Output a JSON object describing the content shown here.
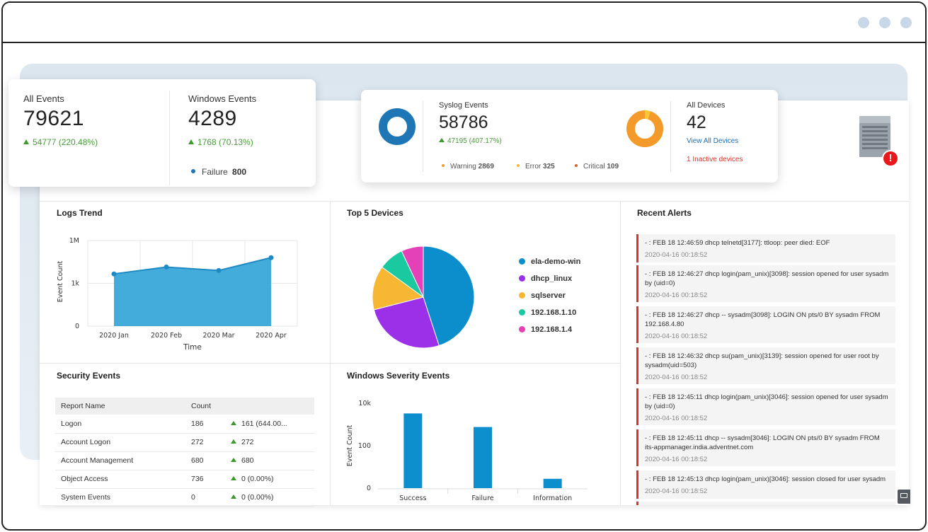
{
  "window": {
    "controls": [
      "dot-1",
      "dot-2",
      "dot-3"
    ]
  },
  "summary": {
    "all_events": {
      "label": "All Events",
      "value": "79621",
      "change": "54777 (220.48%)"
    },
    "windows_events": {
      "label": "Windows Events",
      "value": "4289",
      "change": "1768 (70.13%)",
      "failure_label": "Failure",
      "failure_value": "800"
    },
    "syslog_events": {
      "label": "Syslog Events",
      "value": "58786",
      "change": "47195 (407.17%)",
      "warning_label": "Warning",
      "warning_value": "2869",
      "error_label": "Error",
      "error_value": "325",
      "critical_label": "Critical",
      "critical_value": "109"
    },
    "all_devices": {
      "label": "All Devices",
      "value": "42",
      "view_link": "View All Devices",
      "inactive": "1 Inactive devices"
    }
  },
  "colors": {
    "blue": "#1e77b4",
    "orange": "#f39a2b",
    "red": "#d9342b",
    "green": "#3a9a2a",
    "area": "#3aa8d8",
    "bar": "#0d8fce"
  },
  "icons": {
    "server": "server-icon",
    "alert": "alert-icon"
  },
  "logs_trend": {
    "title": "Logs Trend",
    "chart_data": {
      "type": "area",
      "x": [
        "2020 Jan",
        "2020 Feb",
        "2020 Mar",
        "2020 Apr"
      ],
      "y_tick_labels": [
        "0",
        "1k",
        "1M"
      ],
      "values_relative_to_top_tick": [
        0.61,
        0.69,
        0.65,
        0.8
      ],
      "xlabel": "Time",
      "ylabel": "Event Count",
      "scale": "log"
    }
  },
  "top_devices": {
    "title": "Top 5 Devices",
    "chart_data": {
      "type": "pie",
      "labels": [
        "ela-demo-win",
        "dhcp_linux",
        "sqlserver",
        "192.168.1.10",
        "192.168.1.4"
      ],
      "values": [
        45,
        26,
        14,
        8,
        7
      ],
      "colors": [
        "#0b8ecb",
        "#9b30e8",
        "#f7b733",
        "#1bc9a1",
        "#e440b8"
      ]
    }
  },
  "recent_alerts": {
    "title": "Recent Alerts",
    "items": [
      {
        "msg": "- : FEB 18 12:46:59 dhcp telnetd[3177]: ttloop: peer died: EOF",
        "ts": "2020-04-16 00:18:52"
      },
      {
        "msg": "- : FEB 18 12:46:27 dhcp login(pam_unix)[3098]: session opened for user sysadm by (uid=0)",
        "ts": "2020-04-16 00:18:52"
      },
      {
        "msg": "- : FEB 18 12:46:27 dhcp -- sysadm[3098]: LOGIN ON pts/0 BY sysadm FROM 192.168.4.80",
        "ts": "2020-04-16 00:18:52"
      },
      {
        "msg": "- : FEB 18 12:46:32 dhcp su(pam_unix)[3139]: session opened for user root by sysadm(uid=503)",
        "ts": "2020-04-16 00:18:52"
      },
      {
        "msg": "- : FEB 18 12:45:11 dhcp login(pam_unix)[3046]: session opened for user sysadm by (uid=0)",
        "ts": "2020-04-16 00:18:52"
      },
      {
        "msg": "- : FEB 18 12:45:11 dhcp -- sysadm[3046]: LOGIN ON pts/0 BY sysadm FROM its-appmanager.india.adventnet.com",
        "ts": "2020-04-16 00:18:52"
      },
      {
        "msg": "- : FEB 18 12:45:13 dhcp login(pam_unix)[3046]: session closed for user sysadm",
        "ts": "2020-04-16 00:18:52"
      }
    ]
  },
  "security_events": {
    "title": "Security Events",
    "headers": [
      "Report Name",
      "Count",
      ""
    ],
    "rows": [
      {
        "name": "Logon",
        "count": "186",
        "change": "161 (644.00..."
      },
      {
        "name": "Account Logon",
        "count": "272",
        "change": "272"
      },
      {
        "name": "Account Management",
        "count": "680",
        "change": "680"
      },
      {
        "name": "Object Access",
        "count": "736",
        "change": "0 (0.00%)"
      },
      {
        "name": "System Events",
        "count": "0",
        "change": "0 (0.00%)"
      }
    ]
  },
  "windows_severity": {
    "title": "Windows Severity Events",
    "chart_data": {
      "type": "bar",
      "categories": [
        "Success",
        "Failure",
        "Information"
      ],
      "y_tick_labels": [
        "0",
        "100",
        "10k"
      ],
      "values_relative_to_top_tick": [
        0.88,
        0.72,
        0.11
      ],
      "ylabel": "Event Count",
      "scale": "log"
    }
  }
}
